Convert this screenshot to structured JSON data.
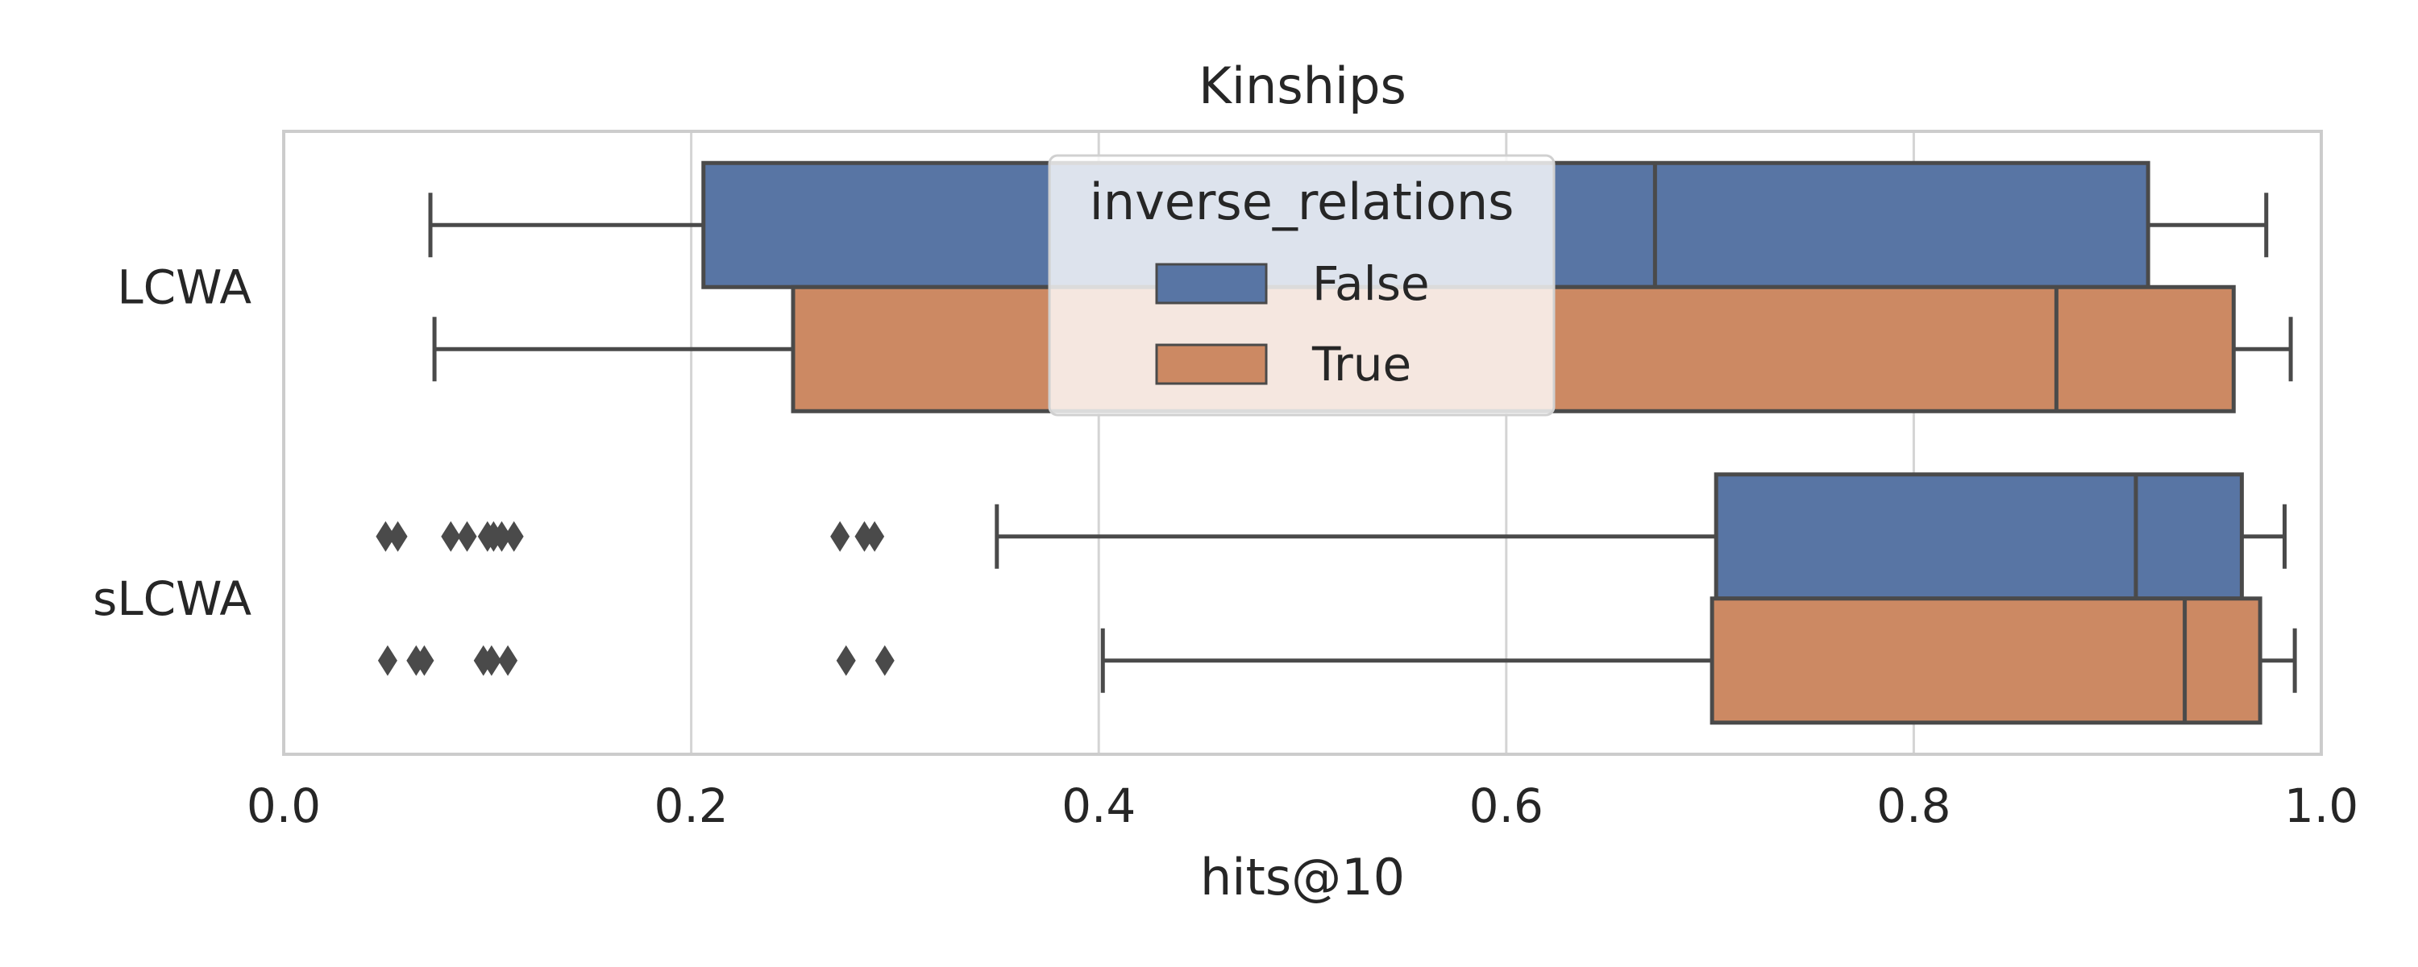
{
  "chart_data": {
    "type": "boxplot",
    "orientation": "horizontal",
    "title": "Kinships",
    "xlabel": "hits@10",
    "ylabel": "",
    "xlim": [
      0.0,
      1.0
    ],
    "xticks": [
      "0.0",
      "0.2",
      "0.4",
      "0.6",
      "0.8",
      "1.0"
    ],
    "categories": [
      "LCWA",
      "sLCWA"
    ],
    "grid": "vertical",
    "legend": {
      "title": "inverse_relations",
      "position": "upper-center",
      "entries": [
        "False",
        "True"
      ]
    },
    "series": [
      {
        "name": "False",
        "color": "#5875a4",
        "boxes": [
          {
            "category": "LCWA",
            "whisker_low": 0.072,
            "q1": 0.206,
            "median": 0.673,
            "q3": 0.915,
            "whisker_high": 0.973,
            "outliers": []
          },
          {
            "category": "sLCWA",
            "whisker_low": 0.35,
            "q1": 0.703,
            "median": 0.909,
            "q3": 0.961,
            "whisker_high": 0.982,
            "outliers": [
              0.05,
              0.056,
              0.082,
              0.09,
              0.1,
              0.103,
              0.107,
              0.113,
              0.273,
              0.285,
              0.29
            ]
          }
        ]
      },
      {
        "name": "True",
        "color": "#cc8963",
        "boxes": [
          {
            "category": "LCWA",
            "whisker_low": 0.074,
            "q1": 0.25,
            "median": 0.87,
            "q3": 0.957,
            "whisker_high": 0.985,
            "outliers": []
          },
          {
            "category": "sLCWA",
            "whisker_low": 0.402,
            "q1": 0.701,
            "median": 0.933,
            "q3": 0.97,
            "whisker_high": 0.987,
            "outliers": [
              0.051,
              0.065,
              0.069,
              0.098,
              0.102,
              0.11,
              0.276,
              0.295
            ]
          }
        ]
      }
    ]
  }
}
